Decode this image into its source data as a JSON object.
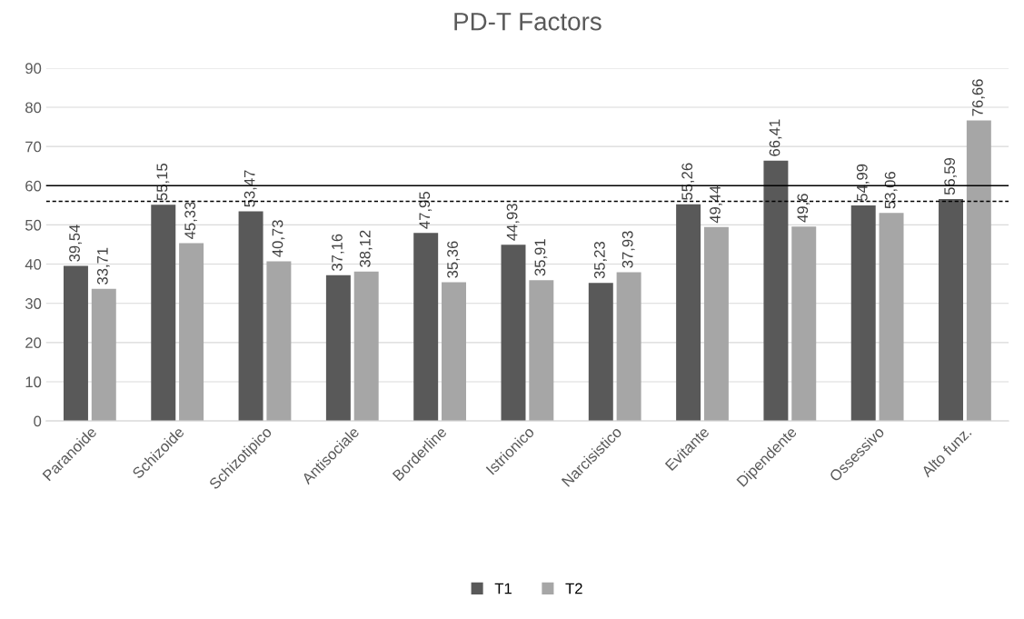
{
  "chart_data": {
    "type": "bar",
    "title": "PD-T Factors",
    "categories": [
      "Paranoide",
      "Schizoide",
      "Schizotipico",
      "Antisociale",
      "Borderline",
      "Istrionico",
      "Narcisistico",
      "Evitante",
      "Dipendente",
      "Ossessivo",
      "Alto funz."
    ],
    "series": [
      {
        "name": "T1",
        "color": "#595959",
        "values": [
          39.54,
          55.15,
          53.47,
          37.16,
          47.95,
          44.93,
          35.23,
          55.26,
          66.41,
          54.99,
          56.59
        ],
        "value_labels": [
          "39,54",
          "55,15",
          "53,47",
          "37,16",
          "47,95",
          "44,93",
          "35,23",
          "55,26",
          "66,41",
          "54,99",
          "56,59"
        ]
      },
      {
        "name": "T2",
        "color": "#a6a6a6",
        "values": [
          33.71,
          45.33,
          40.73,
          38.12,
          35.36,
          35.91,
          37.93,
          49.44,
          49.6,
          53.06,
          76.66
        ],
        "value_labels": [
          "33,71",
          "45,33",
          "40,73",
          "38,12",
          "35,36",
          "35,91",
          "37,93",
          "49,44",
          "49,6",
          "53,06",
          "76,66"
        ]
      }
    ],
    "ylim": [
      0,
      90
    ],
    "yticks": [
      0,
      10,
      20,
      30,
      40,
      50,
      60,
      70,
      80,
      90
    ],
    "grid": "y",
    "legend": "bottom",
    "ref_lines": [
      {
        "axis": "y",
        "value": 60,
        "color": "#000000",
        "line_style": "solid"
      },
      {
        "axis": "y",
        "value": 56,
        "color": "#000000",
        "line_style": "dashed"
      }
    ]
  }
}
